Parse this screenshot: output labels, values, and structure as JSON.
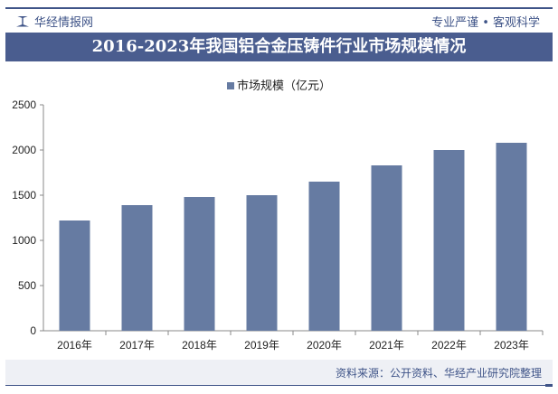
{
  "header": {
    "brand": "华经情报网",
    "slogan": "专业严谨 • 客观科学",
    "title": "2016-2023年我国铝合金压铸件行业市场规模情况"
  },
  "source": "资料来源：公开资料、华经产业研究院整理",
  "colors": {
    "bar": "#667ba2",
    "title_bg": "#4a5d8f"
  },
  "chart_data": {
    "type": "bar",
    "categories": [
      "2016年",
      "2017年",
      "2018年",
      "2019年",
      "2020年",
      "2021年",
      "2022年",
      "2023年"
    ],
    "series": [
      {
        "name": "市场规模（亿元）",
        "values": [
          1220,
          1390,
          1480,
          1500,
          1650,
          1830,
          2000,
          2080
        ]
      }
    ],
    "ylim": [
      0,
      2500
    ],
    "yticks": [
      "0",
      "500",
      "1000",
      "1500",
      "2000",
      "2500"
    ],
    "legend": "top-center",
    "grid": false
  }
}
